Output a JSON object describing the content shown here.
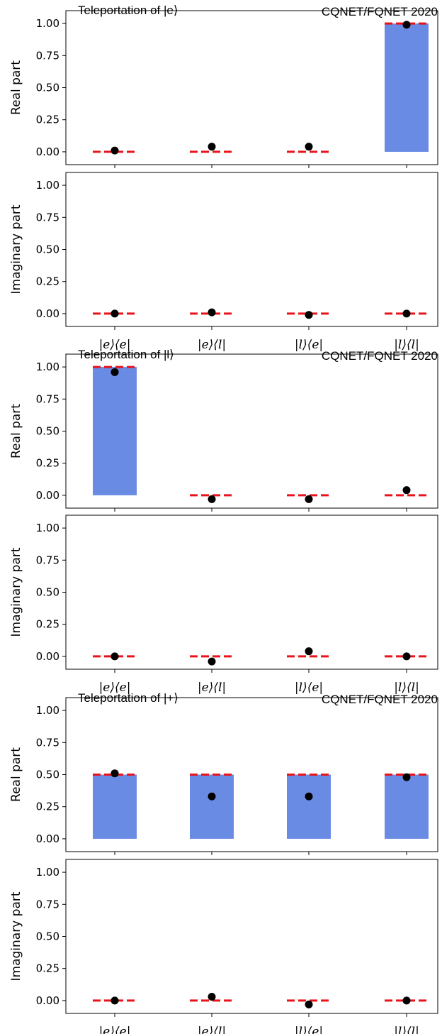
{
  "categories": [
    "|e⟩⟨e|",
    "|e⟩⟨l|",
    "|l⟩⟨e|",
    "|l⟩⟨l|"
  ],
  "colors": {
    "bar": "#6a8be4",
    "theory": "#e8131b",
    "measured": "#000000",
    "axes": "#000000"
  },
  "chart_data": [
    {
      "type": "bar",
      "title": "Teleportation of |e⟩",
      "subtitle": "CQNET/FQNET 2020",
      "panels": [
        {
          "part": "real",
          "ylabel": "Real part",
          "ylim": [
            -0.1,
            1.1
          ],
          "yticks": [
            "0.00",
            "0.25",
            "0.50",
            "0.75",
            "1.00"
          ],
          "bars": [
            0,
            0,
            0,
            1.0
          ],
          "theory": [
            0,
            0,
            0,
            1.0
          ],
          "measured": [
            0.01,
            0.04,
            0.04,
            0.99
          ]
        },
        {
          "part": "imaginary",
          "ylabel": "Imaginary part",
          "ylim": [
            -0.1,
            1.1
          ],
          "yticks": [
            "0.00",
            "0.25",
            "0.50",
            "0.75",
            "1.00"
          ],
          "bars": [
            0,
            0,
            0,
            0
          ],
          "theory": [
            0,
            0,
            0,
            0
          ],
          "measured": [
            0.0,
            0.01,
            -0.01,
            0.0
          ]
        }
      ]
    },
    {
      "type": "bar",
      "title": "Teleportation of |l⟩",
      "subtitle": "CQNET/FQNET 2020",
      "panels": [
        {
          "part": "real",
          "ylabel": "Real part",
          "ylim": [
            -0.1,
            1.1
          ],
          "yticks": [
            "0.00",
            "0.25",
            "0.50",
            "0.75",
            "1.00"
          ],
          "bars": [
            1.0,
            0,
            0,
            0
          ],
          "theory": [
            1.0,
            0,
            0,
            0
          ],
          "measured": [
            0.96,
            -0.03,
            -0.03,
            0.04
          ]
        },
        {
          "part": "imaginary",
          "ylabel": "Imaginary part",
          "ylim": [
            -0.1,
            1.1
          ],
          "yticks": [
            "0.00",
            "0.25",
            "0.50",
            "0.75",
            "1.00"
          ],
          "bars": [
            0,
            0,
            0,
            0
          ],
          "theory": [
            0,
            0,
            0,
            0
          ],
          "measured": [
            0.0,
            -0.04,
            0.04,
            0.0
          ]
        }
      ]
    },
    {
      "type": "bar",
      "title": "Teleportation of |+⟩",
      "subtitle": "CQNET/FQNET 2020",
      "panels": [
        {
          "part": "real",
          "ylabel": "Real part",
          "ylim": [
            -0.1,
            1.1
          ],
          "yticks": [
            "0.00",
            "0.25",
            "0.50",
            "0.75",
            "1.00"
          ],
          "bars": [
            0.5,
            0.5,
            0.5,
            0.5
          ],
          "theory": [
            0.5,
            0.5,
            0.5,
            0.5
          ],
          "measured": [
            0.51,
            0.33,
            0.33,
            0.48
          ]
        },
        {
          "part": "imaginary",
          "ylabel": "Imaginary part",
          "ylim": [
            -0.1,
            1.1
          ],
          "yticks": [
            "0.00",
            "0.25",
            "0.50",
            "0.75",
            "1.00"
          ],
          "bars": [
            0,
            0,
            0,
            0
          ],
          "theory": [
            0,
            0,
            0,
            0
          ],
          "measured": [
            0.0,
            0.03,
            -0.03,
            0.0
          ]
        }
      ]
    }
  ]
}
